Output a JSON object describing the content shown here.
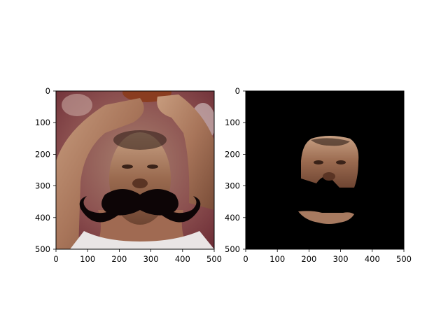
{
  "chart_data": [
    {
      "type": "image",
      "content": "photo of a basketball player holding a ball overhead, with a black handlebar mustache overlay",
      "xlim": [
        0,
        500
      ],
      "ylim": [
        500,
        0
      ],
      "xticks": [
        0,
        100,
        200,
        300,
        400,
        500
      ],
      "yticks": [
        0,
        100,
        200,
        300,
        400,
        500
      ],
      "tick_labels": {
        "x": [
          "0",
          "100",
          "200",
          "300",
          "400",
          "500"
        ],
        "y": [
          "0",
          "100",
          "200",
          "300",
          "400",
          "500"
        ]
      },
      "grid": false
    },
    {
      "type": "image",
      "content": "face region cut out on black background, with the mustache area masked out",
      "xlim": [
        0,
        500
      ],
      "ylim": [
        500,
        0
      ],
      "xticks": [
        0,
        100,
        200,
        300,
        400,
        500
      ],
      "yticks": [
        0,
        100,
        200,
        300,
        400,
        500
      ],
      "tick_labels": {
        "x": [
          "0",
          "100",
          "200",
          "300",
          "400",
          "500"
        ],
        "y": [
          "0",
          "100",
          "200",
          "300",
          "400",
          "500"
        ]
      },
      "grid": false
    }
  ]
}
